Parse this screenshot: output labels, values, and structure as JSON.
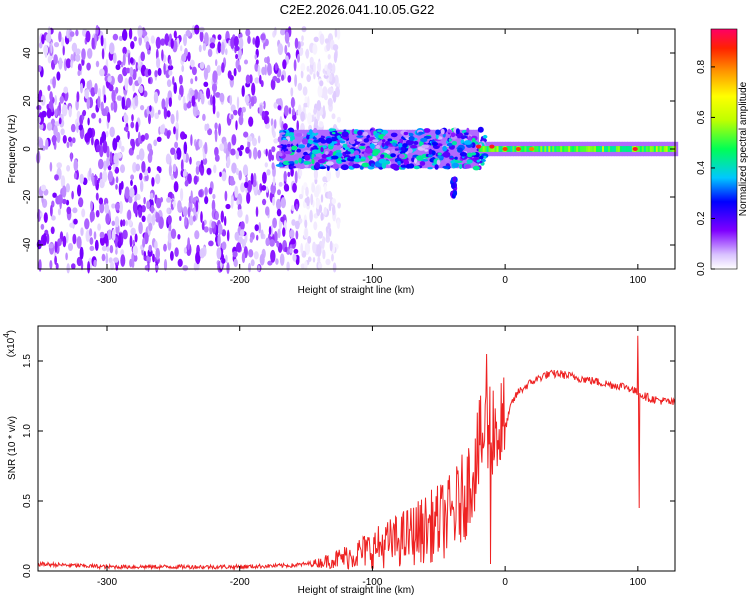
{
  "figure_title": "C2E2.2026.041.10.05.G22",
  "chart_data": [
    {
      "type": "heatmap",
      "title": "C2E2.2026.041.10.05.G22",
      "xlabel": "Height of straight line (km)",
      "ylabel": "Frequency (Hz)",
      "xlim": [
        -352,
        128
      ],
      "ylim": [
        -50,
        50
      ],
      "xticks": [
        -300,
        -200,
        -100,
        0,
        100
      ],
      "xtick_labels": [
        "-300",
        "-200",
        "-100",
        "0",
        "100"
      ],
      "yticks": [
        -40,
        -20,
        0,
        20,
        40
      ],
      "ytick_labels": [
        "-40",
        "-20",
        "0",
        "20",
        "40"
      ],
      "colorbar": {
        "label": "Normalized spectral amplitude",
        "range": [
          0.0,
          0.95
        ],
        "ticks": [
          0.0,
          0.2,
          0.4,
          0.6,
          0.8
        ],
        "tick_labels": [
          "0.0",
          "0.2",
          "0.4",
          "0.6",
          "0.8"
        ]
      },
      "features": {
        "noise_region_x": [
          -352,
          -155
        ],
        "noise_amplitude": 0.15,
        "signal_band_center_hz": 0,
        "signal_onset_x": -170,
        "strong_points": [
          {
            "x": -20,
            "y": 1,
            "amp": 0.9
          },
          {
            "x": -10,
            "y": 1,
            "amp": 0.9
          },
          {
            "x": 0,
            "y": 0,
            "amp": 0.85
          },
          {
            "x": 10,
            "y": 0,
            "amp": 0.85
          },
          {
            "x": 20,
            "y": 0,
            "amp": 0.8
          },
          {
            "x": 98,
            "y": 0,
            "amp": 0.9
          }
        ]
      }
    },
    {
      "type": "line",
      "xlabel": "Height of straight line (km)",
      "ylabel": "SNR (10 * v/v)",
      "ylabel_multiplier": "(x10",
      "ylabel_exponent": "4",
      "ylabel_multiplier_close": ")",
      "xlim": [
        -352,
        128
      ],
      "ylim": [
        0.0,
        1.75
      ],
      "xticks": [
        -300,
        -200,
        -100,
        0,
        100
      ],
      "xtick_labels": [
        "-300",
        "-200",
        "-100",
        "0",
        "100"
      ],
      "yticks": [
        0.0,
        0.5,
        1.0,
        1.5
      ],
      "ytick_labels": [
        "0.0",
        "0.5",
        "1.0",
        "1.5"
      ],
      "color": "#ee2222",
      "series": [
        {
          "name": "SNR",
          "x": [
            -352,
            -300,
            -200,
            -160,
            -140,
            -120,
            -100,
            -80,
            -60,
            -40,
            -30,
            -25,
            -20,
            -15,
            -10,
            -5,
            0,
            5,
            10,
            20,
            30,
            40,
            50,
            60,
            70,
            80,
            90,
            95,
            100,
            105,
            110,
            128
          ],
          "y": [
            0.05,
            0.03,
            0.03,
            0.04,
            0.06,
            0.1,
            0.16,
            0.22,
            0.3,
            0.4,
            0.55,
            0.7,
            0.85,
            1.0,
            1.05,
            1.0,
            1.02,
            1.2,
            1.28,
            1.35,
            1.4,
            1.41,
            1.39,
            1.37,
            1.35,
            1.33,
            1.32,
            1.3,
            1.27,
            1.25,
            1.23,
            1.2
          ]
        }
      ],
      "spikes": [
        {
          "x": -14,
          "y": 1.55
        },
        {
          "x": -11,
          "y": 0.05
        },
        {
          "x": 100,
          "y": 1.68
        },
        {
          "x": 101,
          "y": 0.45
        }
      ]
    }
  ]
}
